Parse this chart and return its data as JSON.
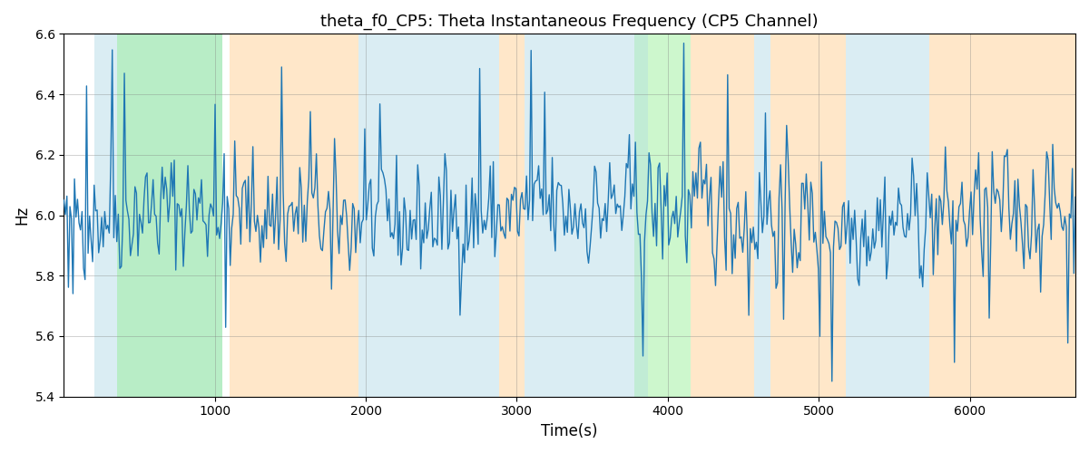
{
  "title": "theta_f0_CP5: Theta Instantaneous Frequency (CP5 Channel)",
  "xlabel": "Time(s)",
  "ylabel": "Hz",
  "ylim": [
    5.4,
    6.6
  ],
  "xlim": [
    0,
    6700
  ],
  "line_color": "#1f77b4",
  "line_width": 1.0,
  "background_color": "#ffffff",
  "grid": true,
  "seed": 42,
  "n_points": 670,
  "mean_freq": 6.0,
  "std_freq": 0.1,
  "segments": [
    {
      "start": 200,
      "end": 1050,
      "color": "#add8e6",
      "alpha": 0.45
    },
    {
      "start": 350,
      "end": 1050,
      "color": "#90ee90",
      "alpha": 0.45
    },
    {
      "start": 1100,
      "end": 1950,
      "color": "#ffd59e",
      "alpha": 0.55
    },
    {
      "start": 1950,
      "end": 2880,
      "color": "#add8e6",
      "alpha": 0.45
    },
    {
      "start": 2880,
      "end": 3050,
      "color": "#ffd59e",
      "alpha": 0.55
    },
    {
      "start": 3050,
      "end": 3780,
      "color": "#add8e6",
      "alpha": 0.45
    },
    {
      "start": 3780,
      "end": 4150,
      "color": "#90ee90",
      "alpha": 0.45
    },
    {
      "start": 3780,
      "end": 3870,
      "color": "#add8e6",
      "alpha": 0.35
    },
    {
      "start": 4150,
      "end": 4570,
      "color": "#ffd59e",
      "alpha": 0.55
    },
    {
      "start": 4570,
      "end": 4680,
      "color": "#add8e6",
      "alpha": 0.45
    },
    {
      "start": 4680,
      "end": 5180,
      "color": "#ffd59e",
      "alpha": 0.55
    },
    {
      "start": 5180,
      "end": 5730,
      "color": "#add8e6",
      "alpha": 0.45
    },
    {
      "start": 5730,
      "end": 6700,
      "color": "#ffd59e",
      "alpha": 0.55
    }
  ]
}
